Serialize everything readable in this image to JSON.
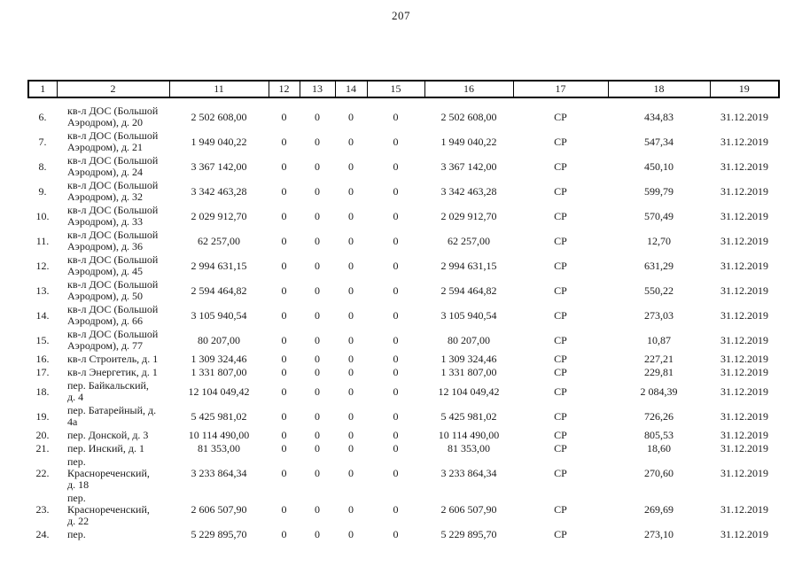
{
  "page_number": "207",
  "table": {
    "columns": [
      "1",
      "2",
      "11",
      "12",
      "13",
      "14",
      "15",
      "16",
      "17",
      "18",
      "19"
    ],
    "rows": [
      {
        "num": "6.",
        "address": "кв-л ДОС (Большой\nАэродром), д. 20",
        "c11": "2 502 608,00",
        "c12": "0",
        "c13": "0",
        "c14": "0",
        "c15": "0",
        "c16": "2 502 608,00",
        "c17": "СР",
        "c18": "434,83",
        "c19": "31.12.2019",
        "lines": 2
      },
      {
        "num": "7.",
        "address": "кв-л ДОС (Большой\nАэродром), д. 21",
        "c11": "1 949 040,22",
        "c12": "0",
        "c13": "0",
        "c14": "0",
        "c15": "0",
        "c16": "1 949 040,22",
        "c17": "СР",
        "c18": "547,34",
        "c19": "31.12.2019",
        "lines": 2
      },
      {
        "num": "8.",
        "address": "кв-л ДОС (Большой\nАэродром), д. 24",
        "c11": "3 367 142,00",
        "c12": "0",
        "c13": "0",
        "c14": "0",
        "c15": "0",
        "c16": "3 367 142,00",
        "c17": "СР",
        "c18": "450,10",
        "c19": "31.12.2019",
        "lines": 2
      },
      {
        "num": "9.",
        "address": "кв-л ДОС (Большой\nАэродром), д. 32",
        "c11": "3 342 463,28",
        "c12": "0",
        "c13": "0",
        "c14": "0",
        "c15": "0",
        "c16": "3 342 463,28",
        "c17": "СР",
        "c18": "599,79",
        "c19": "31.12.2019",
        "lines": 2
      },
      {
        "num": "10.",
        "address": "кв-л ДОС (Большой\nАэродром), д. 33",
        "c11": "2 029 912,70",
        "c12": "0",
        "c13": "0",
        "c14": "0",
        "c15": "0",
        "c16": "2 029 912,70",
        "c17": "СР",
        "c18": "570,49",
        "c19": "31.12.2019",
        "lines": 2
      },
      {
        "num": "11.",
        "address": "кв-л ДОС (Большой\nАэродром), д. 36",
        "c11": "62 257,00",
        "c12": "0",
        "c13": "0",
        "c14": "0",
        "c15": "0",
        "c16": "62 257,00",
        "c17": "СР",
        "c18": "12,70",
        "c19": "31.12.2019",
        "lines": 2
      },
      {
        "num": "12.",
        "address": "кв-л ДОС (Большой\nАэродром), д. 45",
        "c11": "2 994 631,15",
        "c12": "0",
        "c13": "0",
        "c14": "0",
        "c15": "0",
        "c16": "2 994 631,15",
        "c17": "СР",
        "c18": "631,29",
        "c19": "31.12.2019",
        "lines": 2
      },
      {
        "num": "13.",
        "address": "кв-л ДОС (Большой\nАэродром), д. 50",
        "c11": "2 594 464,82",
        "c12": "0",
        "c13": "0",
        "c14": "0",
        "c15": "0",
        "c16": "2 594 464,82",
        "c17": "СР",
        "c18": "550,22",
        "c19": "31.12.2019",
        "lines": 2
      },
      {
        "num": "14.",
        "address": "кв-л ДОС (Большой\nАэродром), д. 66",
        "c11": "3 105 940,54",
        "c12": "0",
        "c13": "0",
        "c14": "0",
        "c15": "0",
        "c16": "3 105 940,54",
        "c17": "СР",
        "c18": "273,03",
        "c19": "31.12.2019",
        "lines": 2
      },
      {
        "num": "15.",
        "address": "кв-л ДОС (Большой\nАэродром), д. 77",
        "c11": "80 207,00",
        "c12": "0",
        "c13": "0",
        "c14": "0",
        "c15": "0",
        "c16": "80 207,00",
        "c17": "СР",
        "c18": "10,87",
        "c19": "31.12.2019",
        "lines": 2
      },
      {
        "num": "16.",
        "address": "кв-л Строитель, д. 1",
        "c11": "1 309 324,46",
        "c12": "0",
        "c13": "0",
        "c14": "0",
        "c15": "0",
        "c16": "1 309 324,46",
        "c17": "СР",
        "c18": "227,21",
        "c19": "31.12.2019",
        "lines": 1
      },
      {
        "num": "17.",
        "address": "кв-л Энергетик, д. 1",
        "c11": "1 331 807,00",
        "c12": "0",
        "c13": "0",
        "c14": "0",
        "c15": "0",
        "c16": "1 331 807,00",
        "c17": "СР",
        "c18": "229,81",
        "c19": "31.12.2019",
        "lines": 1
      },
      {
        "num": "18.",
        "address": "пер. Байкальский,\nд. 4",
        "c11": "12 104 049,42",
        "c12": "0",
        "c13": "0",
        "c14": "0",
        "c15": "0",
        "c16": "12 104 049,42",
        "c17": "СР",
        "c18": "2 084,39",
        "c19": "31.12.2019",
        "lines": 2
      },
      {
        "num": "19.",
        "address": "пер. Батарейный, д.\n4а",
        "c11": "5 425 981,02",
        "c12": "0",
        "c13": "0",
        "c14": "0",
        "c15": "0",
        "c16": "5 425 981,02",
        "c17": "СР",
        "c18": "726,26",
        "c19": "31.12.2019",
        "lines": 2
      },
      {
        "num": "20.",
        "address": "пер. Донской, д. 3",
        "c11": "10 114 490,00",
        "c12": "0",
        "c13": "0",
        "c14": "0",
        "c15": "0",
        "c16": "10 114 490,00",
        "c17": "СР",
        "c18": "805,53",
        "c19": "31.12.2019",
        "lines": 1
      },
      {
        "num": "21.",
        "address": "пер. Инский, д. 1",
        "c11": "81 353,00",
        "c12": "0",
        "c13": "0",
        "c14": "0",
        "c15": "0",
        "c16": "81 353,00",
        "c17": "СР",
        "c18": "18,60",
        "c19": "31.12.2019",
        "lines": 1
      },
      {
        "num": "22.",
        "address": "пер.\nКраснореченский,\nд. 18",
        "c11": "3 233 864,34",
        "c12": "0",
        "c13": "0",
        "c14": "0",
        "c15": "0",
        "c16": "3 233 864,34",
        "c17": "СР",
        "c18": "270,60",
        "c19": "31.12.2019",
        "lines": 3
      },
      {
        "num": "23.",
        "address": "пер.\nКраснореченский,\nд. 22",
        "c11": "2 606 507,90",
        "c12": "0",
        "c13": "0",
        "c14": "0",
        "c15": "0",
        "c16": "2 606 507,90",
        "c17": "СР",
        "c18": "269,69",
        "c19": "31.12.2019",
        "lines": 3
      },
      {
        "num": "24.",
        "address": "пер.",
        "c11": "5 229 895,70",
        "c12": "0",
        "c13": "0",
        "c14": "0",
        "c15": "0",
        "c16": "5 229 895,70",
        "c17": "СР",
        "c18": "273,10",
        "c19": "31.12.2019",
        "lines": 1
      }
    ]
  }
}
